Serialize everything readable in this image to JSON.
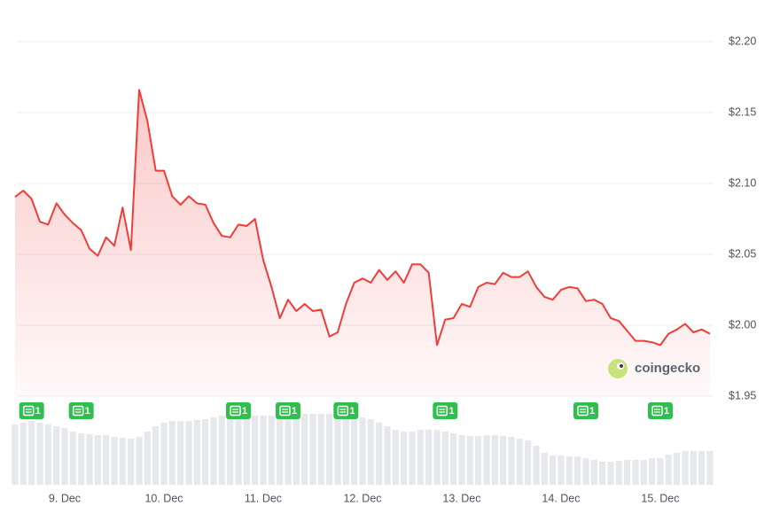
{
  "chart_data": {
    "type": "area",
    "watermark": "coingecko",
    "categories": [
      null,
      null,
      null,
      null,
      null,
      null,
      "9. Dec",
      null,
      null,
      null,
      null,
      null,
      null,
      null,
      null,
      null,
      null,
      null,
      "10. Dec",
      null,
      null,
      null,
      null,
      null,
      null,
      null,
      null,
      null,
      null,
      null,
      "11. Dec",
      null,
      null,
      null,
      null,
      null,
      null,
      null,
      null,
      null,
      null,
      null,
      "12. Dec",
      null,
      null,
      null,
      null,
      null,
      null,
      null,
      null,
      null,
      null,
      null,
      "13. Dec",
      null,
      null,
      null,
      null,
      null,
      null,
      null,
      null,
      null,
      null,
      null,
      "14. Dec",
      null,
      null,
      null,
      null,
      null,
      null,
      null,
      null,
      null,
      null,
      null,
      "15. Dec",
      null,
      null,
      null,
      null,
      null,
      null
    ],
    "series": [
      {
        "color": "#ef3e3a",
        "values": [
          2.0905,
          2.095,
          2.089,
          2.073,
          2.071,
          2.086,
          2.078,
          2.072,
          2.067,
          2.054,
          2.049,
          2.062,
          2.056,
          2.083,
          2.053,
          2.166,
          2.144,
          2.109,
          2.109,
          2.091,
          2.085,
          2.091,
          2.086,
          2.085,
          2.072,
          2.063,
          2.062,
          2.071,
          2.07,
          2.075,
          2.046,
          2.027,
          2.005,
          2.018,
          2.01,
          2.015,
          2.01,
          2.011,
          1.992,
          1.995,
          2.015,
          2.03,
          2.033,
          2.03,
          2.039,
          2.032,
          2.038,
          2.03,
          2.043,
          2.043,
          2.037,
          1.986,
          2.004,
          2.005,
          2.015,
          2.013,
          2.027,
          2.03,
          2.029,
          2.037,
          2.034,
          2.034,
          2.038,
          2.027,
          2.02,
          2.018,
          2.025,
          2.027,
          2.026,
          2.017,
          2.018,
          2.015,
          2.005,
          2.003,
          1.996,
          1.989,
          1.989,
          1.988,
          1.986,
          1.994,
          1.997,
          2.001,
          1.995,
          1.997,
          1.994
        ]
      }
    ],
    "ylim": [
      1.95,
      2.2
    ],
    "yticks": [
      {
        "value": 1.95,
        "label": "$1.95"
      },
      {
        "value": 2.0,
        "label": "$2.00"
      },
      {
        "value": 2.05,
        "label": "$2.05"
      },
      {
        "value": 2.1,
        "label": "$2.10"
      },
      {
        "value": 2.15,
        "label": "$2.15"
      },
      {
        "value": 2.2,
        "label": "$2.20"
      }
    ],
    "grid": true,
    "volume": {
      "color": "#e6e8ec",
      "ylim": [
        0,
        100
      ],
      "values": [
        68,
        70,
        72,
        70,
        68,
        66,
        64,
        60,
        58,
        57,
        56,
        56,
        54,
        53,
        52,
        54,
        60,
        66,
        70,
        72,
        72,
        72,
        73,
        74,
        76,
        78,
        78,
        78,
        78,
        78,
        78,
        78,
        78,
        79,
        80,
        80,
        80,
        80,
        80,
        78,
        78,
        76,
        76,
        74,
        70,
        66,
        62,
        60,
        60,
        62,
        62,
        62,
        60,
        58,
        56,
        55,
        55,
        56,
        56,
        55,
        54,
        52,
        50,
        44,
        36,
        33,
        33,
        32,
        32,
        30,
        28,
        26,
        26,
        27,
        28,
        28,
        28,
        30,
        30,
        34,
        36,
        38,
        38,
        38,
        38
      ]
    },
    "news": [
      {
        "index": 2,
        "count": 1
      },
      {
        "index": 8,
        "count": 1
      },
      {
        "index": 27,
        "count": 1
      },
      {
        "index": 33,
        "count": 1
      },
      {
        "index": 40,
        "count": 1
      },
      {
        "index": 52,
        "count": 1
      },
      {
        "index": 69,
        "count": 1
      },
      {
        "index": 78,
        "count": 1
      }
    ]
  }
}
